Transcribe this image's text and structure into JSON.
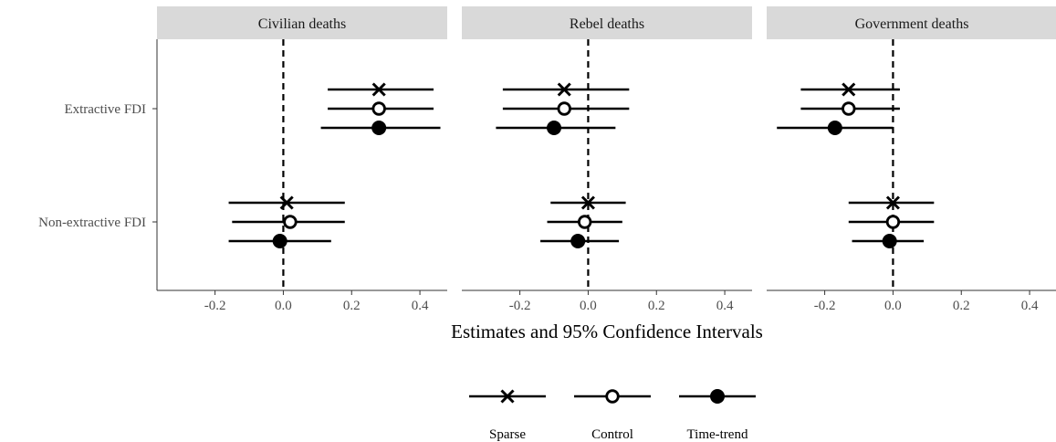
{
  "chart_data": {
    "type": "forest",
    "xlabel": "Estimates and 95% Confidence Intervals",
    "xlim": [
      -0.37,
      0.48
    ],
    "x_ticks": [
      -0.2,
      0.0,
      0.2,
      0.4
    ],
    "x_tick_labels": [
      "-0.2",
      "0.0",
      "0.2",
      "0.4"
    ],
    "reference_line": 0,
    "grid": false,
    "legend_position": "bottom",
    "rows": [
      "Extractive FDI",
      "Non-extractive FDI"
    ],
    "models": [
      {
        "name": "Sparse",
        "marker": "cross"
      },
      {
        "name": "Control",
        "marker": "open-circle"
      },
      {
        "name": "Time-trend",
        "marker": "filled-circle"
      }
    ],
    "panels": [
      {
        "title": "Civilian deaths",
        "estimates": [
          {
            "row": "Extractive FDI",
            "model": "Sparse",
            "est": 0.28,
            "lo": 0.13,
            "hi": 0.44
          },
          {
            "row": "Extractive FDI",
            "model": "Control",
            "est": 0.28,
            "lo": 0.13,
            "hi": 0.44
          },
          {
            "row": "Extractive FDI",
            "model": "Time-trend",
            "est": 0.28,
            "lo": 0.11,
            "hi": 0.46
          },
          {
            "row": "Non-extractive FDI",
            "model": "Sparse",
            "est": 0.01,
            "lo": -0.16,
            "hi": 0.18
          },
          {
            "row": "Non-extractive FDI",
            "model": "Control",
            "est": 0.02,
            "lo": -0.15,
            "hi": 0.18
          },
          {
            "row": "Non-extractive FDI",
            "model": "Time-trend",
            "est": -0.01,
            "lo": -0.16,
            "hi": 0.14
          }
        ]
      },
      {
        "title": "Rebel deaths",
        "estimates": [
          {
            "row": "Extractive FDI",
            "model": "Sparse",
            "est": -0.07,
            "lo": -0.25,
            "hi": 0.12
          },
          {
            "row": "Extractive FDI",
            "model": "Control",
            "est": -0.07,
            "lo": -0.25,
            "hi": 0.12
          },
          {
            "row": "Extractive FDI",
            "model": "Time-trend",
            "est": -0.1,
            "lo": -0.27,
            "hi": 0.08
          },
          {
            "row": "Non-extractive FDI",
            "model": "Sparse",
            "est": 0.0,
            "lo": -0.11,
            "hi": 0.11
          },
          {
            "row": "Non-extractive FDI",
            "model": "Control",
            "est": -0.01,
            "lo": -0.12,
            "hi": 0.1
          },
          {
            "row": "Non-extractive FDI",
            "model": "Time-trend",
            "est": -0.03,
            "lo": -0.14,
            "hi": 0.09
          }
        ]
      },
      {
        "title": "Government deaths",
        "estimates": [
          {
            "row": "Extractive FDI",
            "model": "Sparse",
            "est": -0.13,
            "lo": -0.27,
            "hi": 0.02
          },
          {
            "row": "Extractive FDI",
            "model": "Control",
            "est": -0.13,
            "lo": -0.27,
            "hi": 0.02
          },
          {
            "row": "Extractive FDI",
            "model": "Time-trend",
            "est": -0.17,
            "lo": -0.34,
            "hi": 0.0
          },
          {
            "row": "Non-extractive FDI",
            "model": "Sparse",
            "est": 0.0,
            "lo": -0.13,
            "hi": 0.12
          },
          {
            "row": "Non-extractive FDI",
            "model": "Control",
            "est": 0.0,
            "lo": -0.13,
            "hi": 0.12
          },
          {
            "row": "Non-extractive FDI",
            "model": "Time-trend",
            "est": -0.01,
            "lo": -0.12,
            "hi": 0.09
          }
        ]
      }
    ]
  }
}
